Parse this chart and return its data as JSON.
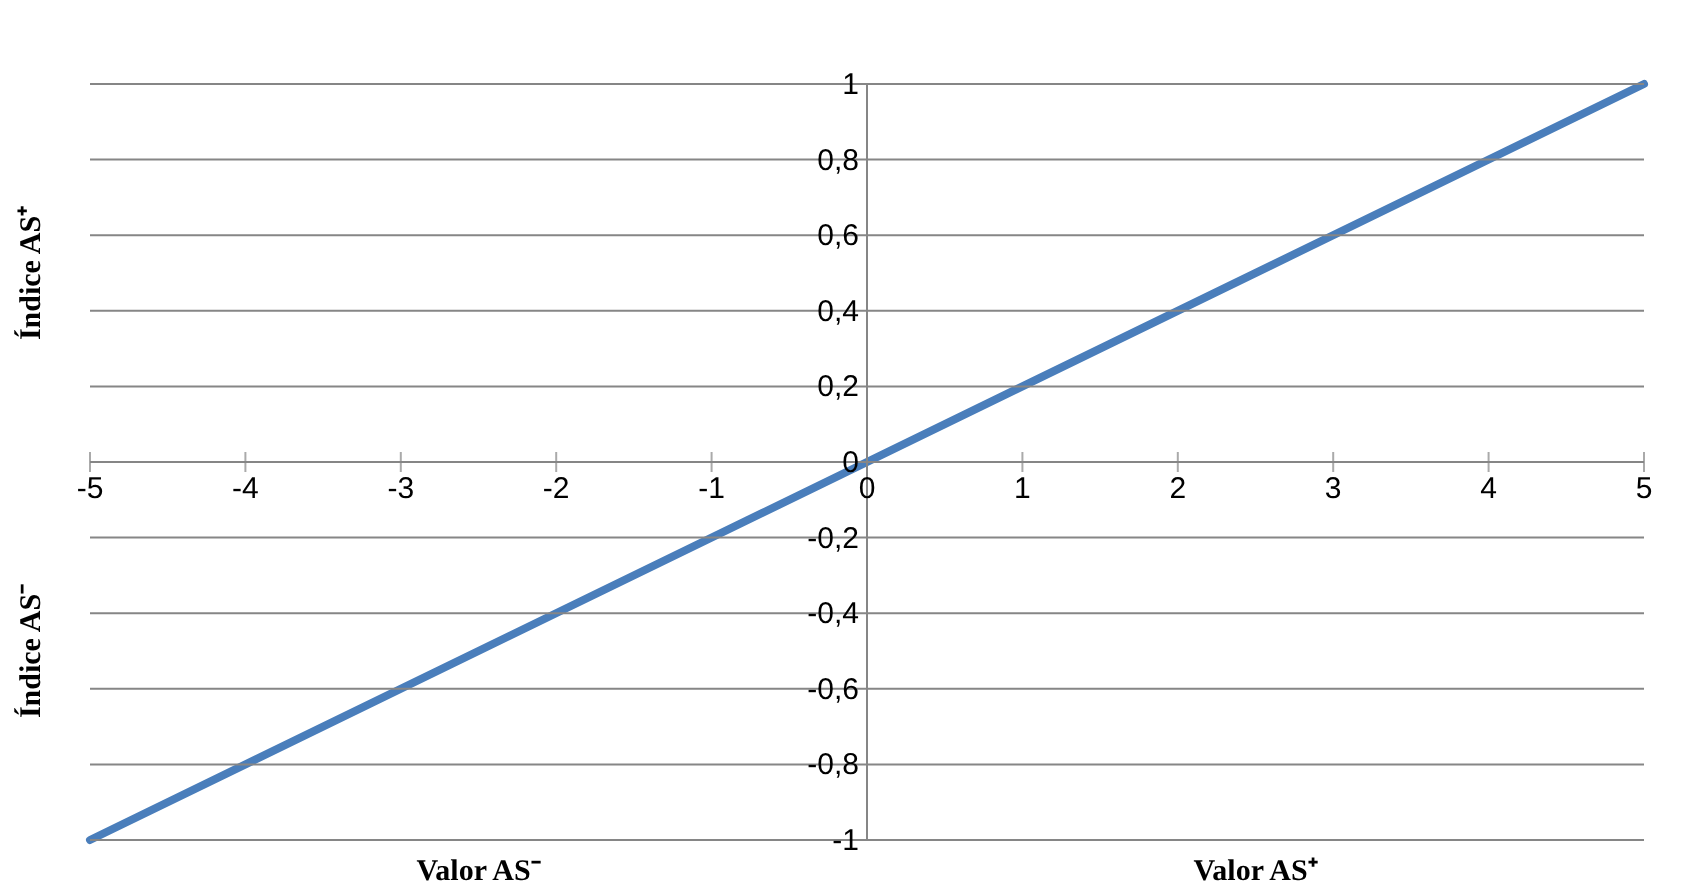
{
  "chart_data": {
    "type": "line",
    "x": [
      -5,
      5
    ],
    "values": [
      -1,
      1
    ],
    "color": "#4a7ebb",
    "xlim": [
      -5,
      5
    ],
    "ylim": [
      -1,
      1
    ],
    "xticks": [
      -5,
      -4,
      -3,
      -2,
      -1,
      0,
      1,
      2,
      3,
      4,
      5
    ],
    "yticks": [
      {
        "value": -1,
        "label": "-1"
      },
      {
        "value": -0.8,
        "label": "-0,8"
      },
      {
        "value": -0.6,
        "label": "-0,6"
      },
      {
        "value": -0.4,
        "label": "-0,4"
      },
      {
        "value": -0.2,
        "label": "-0,2"
      },
      {
        "value": 0,
        "label": "0"
      },
      {
        "value": 0.2,
        "label": "0,2"
      },
      {
        "value": 0.4,
        "label": "0,4"
      },
      {
        "value": 0.6,
        "label": "0,6"
      },
      {
        "value": 0.8,
        "label": "0,8"
      },
      {
        "value": 1,
        "label": "1"
      }
    ],
    "xlabel": "Valor AS⁺",
    "ylabel": "Índice AS⁺",
    "annotations": [
      "Valor AS⁻",
      "Índice AS⁻"
    ],
    "grid": "y"
  }
}
